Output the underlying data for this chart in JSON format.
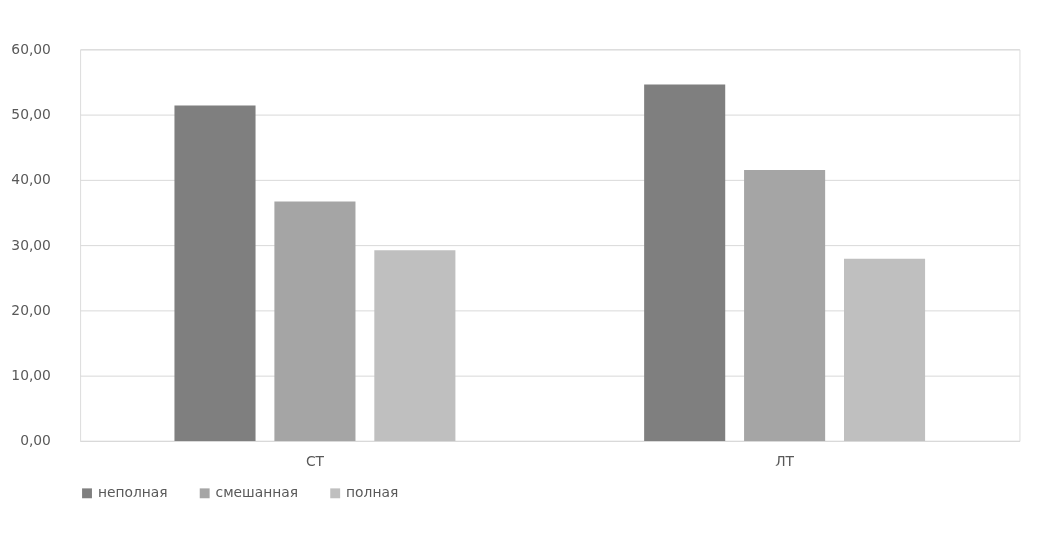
{
  "chart_data": {
    "type": "bar",
    "categories": [
      "СТ",
      "ЛТ"
    ],
    "series": [
      {
        "name": "неполная",
        "color": "#7f7f7f",
        "values": [
          51.4,
          54.6
        ]
      },
      {
        "name": "смешанная",
        "color": "#a5a5a5",
        "values": [
          36.7,
          41.5
        ]
      },
      {
        "name": "полная",
        "color": "#bfbfbf",
        "values": [
          29.2,
          27.9
        ]
      }
    ],
    "ylim": [
      0,
      60
    ],
    "yticks": [
      {
        "value": 0,
        "label": "0,00"
      },
      {
        "value": 10,
        "label": "10,00"
      },
      {
        "value": 20,
        "label": "20,00"
      },
      {
        "value": 30,
        "label": "30,00"
      },
      {
        "value": 40,
        "label": "40,00"
      },
      {
        "value": 50,
        "label": "50,00"
      },
      {
        "value": 60,
        "label": "60,00"
      }
    ],
    "grid": "y",
    "legend": "bottom"
  }
}
